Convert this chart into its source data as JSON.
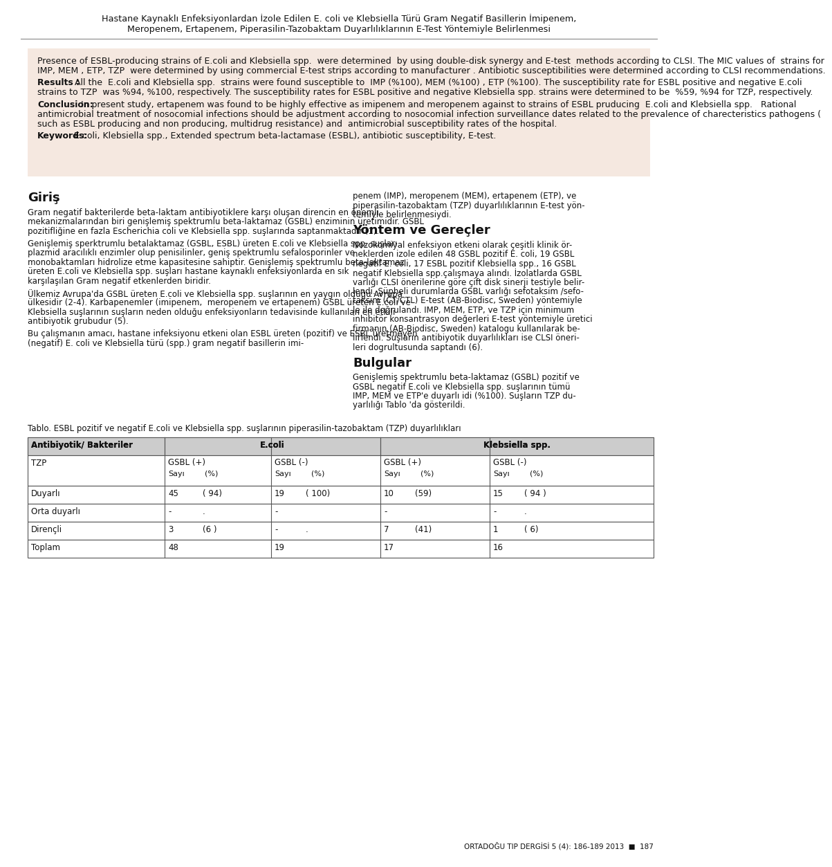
{
  "title_line1": "Hastane Kaynaklı Enfeksiyonlardan İzole Edilen E. coli ve Klebsiella Türü Gram Negatif Basillerin İmipenem,",
  "title_line2": "Meropenem, Ertapenem, Piperasilin-Tazobaktam Duyarlılıklarının E-Test Yöntemiyle Belirlenmesi",
  "abstract_box_bg": "#f5e8e0",
  "body_bg": "#ffffff",
  "text_color": "#111111",
  "table_header_bg": "#cccccc",
  "table_border_color": "#555555",
  "font_size_title": 9.2,
  "font_size_abstract": 9.0,
  "font_size_body": 8.5,
  "font_size_section": 13.0,
  "font_size_table": 8.5,
  "font_size_caption": 8.5,
  "font_size_footer": 7.5,
  "footer_text": "ORTADOĞU TIP DERGİSİ 5 (4): 186-189 2013  ■  187",
  "tablo_caption": "Tablo. ESBL pozitif ve negatif E.coli ve Klebsiella spp. suşlarının piperasilin-tazobaktam (TZP) duyarlılıkları",
  "abstract_lines": [
    {
      "bold_prefix": "",
      "text": "Presence of ESBL-producing strains of E.coli and Klebsiella spp.  were determined  by using double-disk synergy and E-test  methods according to CLSI. The MIC values of  strains for IMP, MEM , ETP, TZP  were determined by using commercial E-test strips according to manufacturer . Antibiotic susceptibilities were determined according to CLSI recommendations."
    },
    {
      "bold_prefix": "Results : ",
      "text": "All the  E.coli and Klebsiella spp.  strains were found susceptible to  IMP (%100), MEM (%100) , ETP (%100). The susceptibility rate for ESBL positive and negative E.coli strains to TZP  was %94, %100, respectively. The susceptibility rates for ESBL positive and negative Klebsiella spp. strains were determined to be  %59, %94 for TZP, respectively."
    },
    {
      "bold_prefix": "Conclusion:",
      "text": " In present study, ertapenem was found to be highly effective as imipenem and meropenem against to strains of ESBL pruducing  E.coli and Klebsiella spp.   Rational antimicrobial treatment of nosocomial infections should be adjustment according to nosocomial infection surveillance dates related to the prevalence of charecteristics pathogens ( such as ESBL producing and non producing, multidrug resistance) and  antimicrobial susceptibility rates of the hospital."
    },
    {
      "bold_prefix": "Keywords:",
      "text": " E.coli, Klebsiella spp., Extended spectrum beta-lactamase (ESBL), antibiotic susceptibility, E-test."
    }
  ],
  "left_col_lines": [
    {
      "bold": false,
      "text": "Gram negatif bakterilerde beta-laktam antibiyotiklere karşı oluşan direncin en önemli mekanizmalarından biri genişlemiş spektrumlu beta-laktamaz (GSBL) enziminin üretimidir. GSBL pozitifliğine en fazla Escherichia coli ve Klebsiella spp. suşlarında saptanmaktadır (1)."
    },
    {
      "bold": false,
      "text": ""
    },
    {
      "bold": false,
      "text": "Genişlemiş sperktrumlu betalaktamaz (GSBL, ESBL) üreten E.coli ve Klebsiella spp. suşları  plazmid aracılıklı enzimler olup penisilinler, geniş spektrumlu sefalosporinler ve monobaktamları hidrolize etme kapasitesine sahiptir. Genişlemiş spektrumlu beta-laktamaz  üreten E.coli ve Klebsiella spp. suşları hastane kaynaklı enfeksiyonlarda en sık karşılaşılan Gram negatif etkenlerden biridir."
    },
    {
      "bold": false,
      "text": ""
    },
    {
      "bold": false,
      "text": "Ülkemiz Avrupa'da GSBL üreten E.coli ve Klebsiella spp. suşlarının en yaygın olduğu Avrupa ülkesidir (2-4). Karbapenemler (imipenem,  meropenem ve ertapenem) GSBL üreten E.coli ve Klebsiella suşlarının suşların neden olduğu enfeksiyonların tedavisinde kullanılan en etkili antibiyotik grubudur (5)."
    },
    {
      "bold": false,
      "text": ""
    },
    {
      "bold": false,
      "text": "Bu çalışmanın amacı, hastane infeksiyonu etkeni olan ESBL üreten (pozitif) ve ESBL üretmeyen (negatif) E. coli ve Klebsiella türü (spp.) gram negatif basillerin imi-"
    }
  ],
  "right_intro_lines": [
    "penem (IMP), meropenem (MEM), ertapenem (ETP), ve",
    "piperasilin-tazobaktam (TZP) duyarlılıklarının E-test yön-",
    "temiyle belirlenmesiydi."
  ],
  "yontem_lines": [
    "Nozokomiyal enfeksiyon etkeni olarak çeşitli klinik ör-",
    "neklerden izole edilen 48 GSBL pozitif E. coli, 19 GSBL",
    "negatif E. coli, 17 ESBL pozitif Klebsiella spp., 16 GSBL",
    "negatif Klebsiella spp.çalışmaya alındı. İzolatlarda GSBL",
    "varlığı CLSI önerilerine göre çift disk sinerji testiyle belir-",
    "lendi. Şüpheli durumlarda GSBL varlığı sefotaksim /sefo-",
    "taksim (CT/CTL) E-test (AB-Biodisc, Sweden) yöntemiyle",
    "le ile doğrulandı. IMP, MEM, ETP, ve TZP için minimum",
    "inhibitör konsantrasyon değerleri E-test yöntemiyle üretici",
    "firmanın (AB-Biodisc, Sweden) katalogu kullanılarak be-",
    "lirlendi. Suşların antibiyotik duyarlılıkları ise CLSI öneri-",
    "leri dogrultusunda saptandı (6)."
  ],
  "bulgular_lines": [
    "Genişlemiş spektrumlu beta-laktamaz (GSBL) pozitif ve",
    "GSBL negatif E.coli ve Klebsiella spp. suşlarının tümü",
    "IMP, MEM ve ETP'e duyarlı idi (%100). Suşların TZP du-",
    "yarlılığı Tablo 'da gösterildi."
  ],
  "table_rows": [
    {
      "label": "Duyarlı",
      "c1n": "45",
      "c1p": "( 94)",
      "c2n": "19",
      "c2p": "( 100)",
      "c3n": "10",
      "c3p": "(59)",
      "c4n": "15",
      "c4p": "( 94 )"
    },
    {
      "label": "Orta duyarlı",
      "c1n": "-",
      "c1p": ".",
      "c2n": "-",
      "c2p": "",
      "c3n": "-",
      "c3p": "",
      "c4n": "-",
      "c4p": "."
    },
    {
      "label": "Dirençli",
      "c1n": "3",
      "c1p": "(6 )",
      "c2n": "-",
      "c2p": ".",
      "c3n": "7",
      "c3p": "(41)",
      "c4n": "1",
      "c4p": "( 6)"
    },
    {
      "label": "Toplam",
      "c1n": "48",
      "c1p": "",
      "c2n": "19",
      "c2p": "",
      "c3n": "17",
      "c3p": "",
      "c4n": "16",
      "c4p": ""
    }
  ]
}
